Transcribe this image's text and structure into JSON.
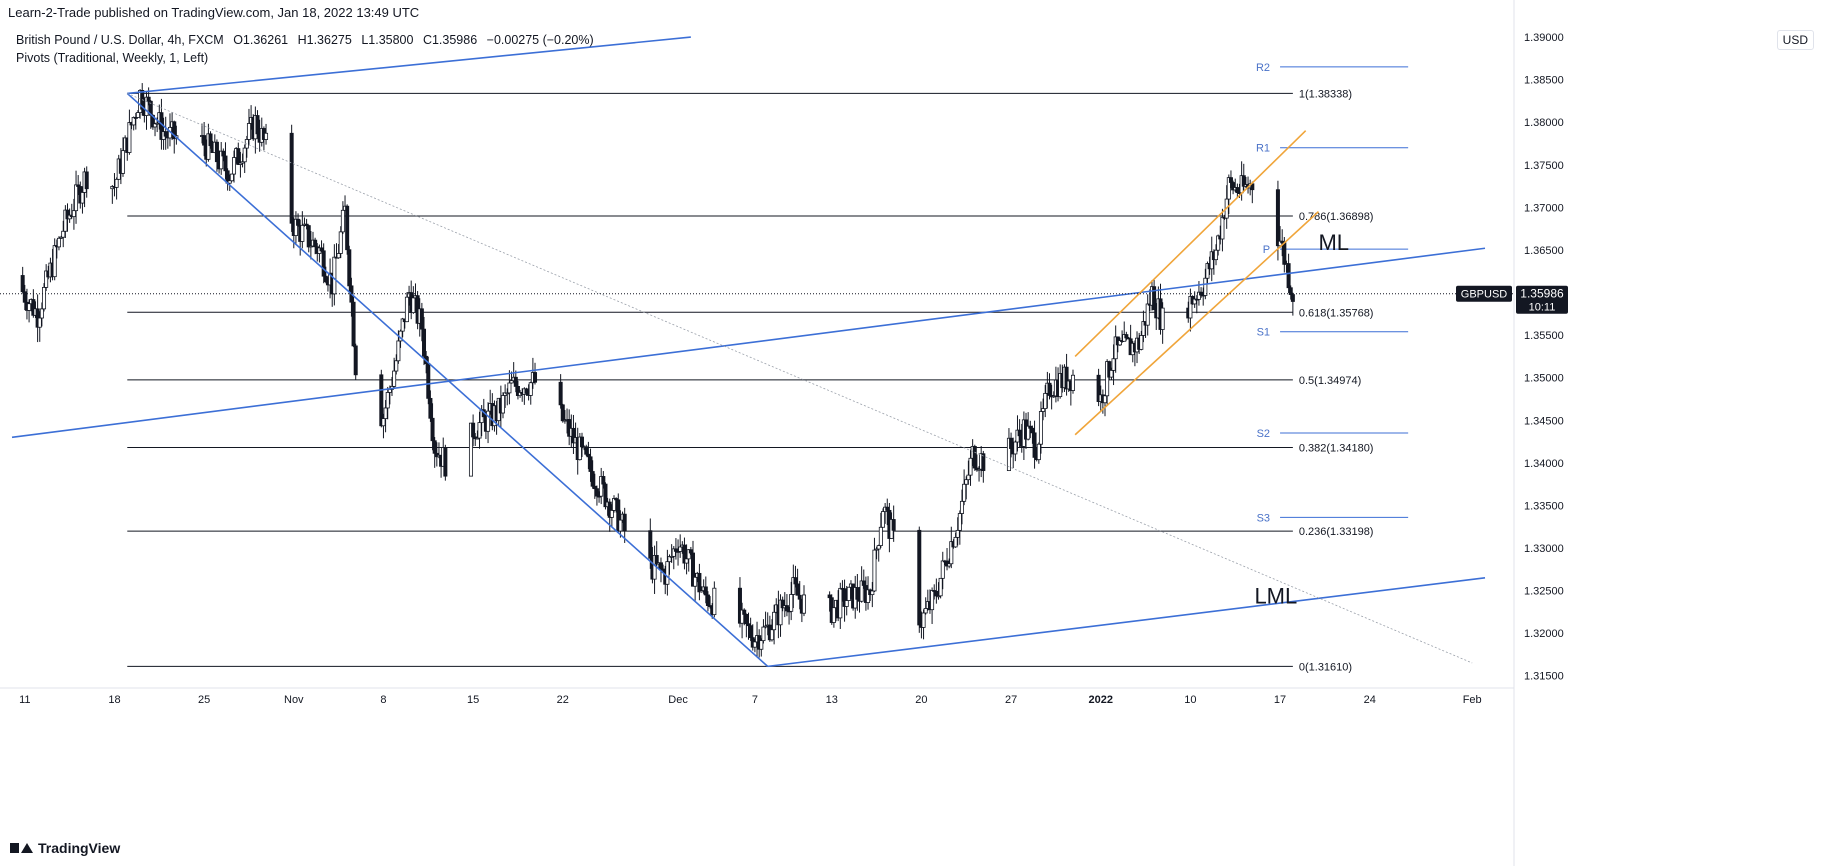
{
  "header": {
    "published": "Learn-2-Trade published on TradingView.com, Jan 18, 2022 13:49 UTC",
    "symbol_desc": "British Pound / U.S. Dollar, 4h, FXCM",
    "open": "O1.36261",
    "high": "H1.36275",
    "low": "L1.35800",
    "close": "C1.35986",
    "change": "−0.00275 (−0.20%)",
    "pivots": "Pivots (Traditional, Weekly, 1, Left)"
  },
  "currency_button": "USD",
  "brand": "TradingView",
  "price_tag": {
    "symbol": "GBPUSD",
    "price": "1.35986",
    "countdown": "10:11"
  },
  "colors": {
    "up_candle": "#ffffff",
    "down_candle": "#131722",
    "trend_line": "#3c6fd6",
    "channel": "#f0a53a",
    "fib_line": "#131722",
    "pivot_line": "#3c6fd6",
    "pivot_label": "#4a72c8"
  },
  "chart_data": {
    "type": "candlestick",
    "symbol": "GBPUSD",
    "timeframe": "4h",
    "ylim": [
      1.3145,
      1.392
    ],
    "y_ticks": [
      "1.39000",
      "1.38500",
      "1.38000",
      "1.37500",
      "1.37000",
      "1.36500",
      "1.36000",
      "1.35500",
      "1.35000",
      "1.34500",
      "1.34000",
      "1.33500",
      "1.33000",
      "1.32500",
      "1.32000",
      "1.31500"
    ],
    "x_ticks": [
      {
        "label": "11",
        "x": "2021-10-11"
      },
      {
        "label": "18",
        "x": "2021-10-18"
      },
      {
        "label": "25",
        "x": "2021-10-25"
      },
      {
        "label": "Nov",
        "x": "2021-11-01"
      },
      {
        "label": "8",
        "x": "2021-11-08"
      },
      {
        "label": "15",
        "x": "2021-11-15"
      },
      {
        "label": "22",
        "x": "2021-11-22"
      },
      {
        "label": "Dec",
        "x": "2021-12-01"
      },
      {
        "label": "7",
        "x": "2021-12-07"
      },
      {
        "label": "13",
        "x": "2021-12-13"
      },
      {
        "label": "20",
        "x": "2021-12-20"
      },
      {
        "label": "27",
        "x": "2021-12-27"
      },
      {
        "label": "2022",
        "x": "2022-01-03"
      },
      {
        "label": "10",
        "x": "2022-01-10"
      },
      {
        "label": "17",
        "x": "2022-01-17"
      },
      {
        "label": "24",
        "x": "2022-01-24"
      },
      {
        "label": "Feb",
        "x": "2022-02-01"
      }
    ],
    "price_path": [
      [
        "2021-10-10",
        1.362
      ],
      [
        "2021-10-12",
        1.3575
      ],
      [
        "2021-10-14",
        1.3675
      ],
      [
        "2021-10-16",
        1.3745
      ],
      [
        "2021-10-18",
        1.3725
      ],
      [
        "2021-10-20",
        1.3833
      ],
      [
        "2021-10-22",
        1.3785
      ],
      [
        "2021-10-25",
        1.3775
      ],
      [
        "2021-10-27",
        1.374
      ],
      [
        "2021-10-29",
        1.38
      ],
      [
        "2021-10-30",
        1.3765
      ],
      [
        "2021-11-01",
        1.368
      ],
      [
        "2021-11-03",
        1.365
      ],
      [
        "2021-11-04",
        1.361
      ],
      [
        "2021-11-05",
        1.3695
      ],
      [
        "2021-11-06",
        1.348
      ],
      [
        "2021-11-08",
        1.3455
      ],
      [
        "2021-11-09",
        1.352
      ],
      [
        "2021-11-10",
        1.36
      ],
      [
        "2021-11-11",
        1.356
      ],
      [
        "2021-11-12",
        1.342
      ],
      [
        "2021-11-14",
        1.3375
      ],
      [
        "2021-11-15",
        1.344
      ],
      [
        "2021-11-17",
        1.346
      ],
      [
        "2021-11-18",
        1.349
      ],
      [
        "2021-11-20",
        1.3495
      ],
      [
        "2021-11-22",
        1.345
      ],
      [
        "2021-11-24",
        1.3395
      ],
      [
        "2021-11-26",
        1.3345
      ],
      [
        "2021-11-28",
        1.3285
      ],
      [
        "2021-11-30",
        1.327
      ],
      [
        "2021-12-01",
        1.331
      ],
      [
        "2021-12-03",
        1.3245
      ],
      [
        "2021-12-05",
        1.3225
      ],
      [
        "2021-12-07",
        1.3195
      ],
      [
        "2021-12-08",
        1.3205
      ],
      [
        "2021-12-10",
        1.325
      ],
      [
        "2021-12-12",
        1.3215
      ],
      [
        "2021-12-14",
        1.324
      ],
      [
        "2021-12-16",
        1.325
      ],
      [
        "2021-12-17",
        1.335
      ],
      [
        "2021-12-18",
        1.33
      ],
      [
        "2021-12-20",
        1.3215
      ],
      [
        "2021-12-21",
        1.324
      ],
      [
        "2021-12-23",
        1.334
      ],
      [
        "2021-12-24",
        1.341
      ],
      [
        "2021-12-26",
        1.3395
      ],
      [
        "2021-12-28",
        1.344
      ],
      [
        "2021-12-29",
        1.342
      ],
      [
        "2021-12-30",
        1.349
      ],
      [
        "2022-01-02",
        1.351
      ],
      [
        "2022-01-03",
        1.3475
      ],
      [
        "2022-01-04",
        1.353
      ],
      [
        "2022-01-06",
        1.354
      ],
      [
        "2022-01-07",
        1.36
      ],
      [
        "2022-01-08",
        1.356
      ],
      [
        "2022-01-10",
        1.359
      ],
      [
        "2022-01-11",
        1.361
      ],
      [
        "2022-01-12",
        1.365
      ],
      [
        "2022-01-13",
        1.3725
      ],
      [
        "2022-01-14",
        1.372
      ],
      [
        "2022-01-15",
        1.373
      ],
      [
        "2022-01-16",
        1.37
      ],
      [
        "2022-01-17",
        1.3662
      ],
      [
        "2022-01-18",
        1.3599
      ]
    ],
    "last_price": 1.35986,
    "fibonacci": [
      {
        "level": "1",
        "value": 1.38338,
        "label": "1(1.38338)"
      },
      {
        "level": "0.786",
        "value": 1.36898,
        "label": "0.786(1.36898)"
      },
      {
        "level": "0.618",
        "value": 1.35768,
        "label": "0.618(1.35768)"
      },
      {
        "level": "0.5",
        "value": 1.34974,
        "label": "0.5(1.34974)"
      },
      {
        "level": "0.382",
        "value": 1.3418,
        "label": "0.382(1.34180)"
      },
      {
        "level": "0.236",
        "value": 1.33198,
        "label": "0.236(1.33198)"
      },
      {
        "level": "0",
        "value": 1.3161,
        "label": "0(1.31610)"
      }
    ],
    "pivots": [
      {
        "label": "R2",
        "value": 1.3865
      },
      {
        "label": "R1",
        "value": 1.377
      },
      {
        "label": "P",
        "value": 1.3651
      },
      {
        "label": "S1",
        "value": 1.3554
      },
      {
        "label": "S2",
        "value": 1.3435
      },
      {
        "label": "S3",
        "value": 1.3336
      }
    ],
    "annotations": [
      {
        "text": "ML",
        "x": "2022-01-20",
        "y": 1.365
      },
      {
        "text": "LML",
        "x": "2022-01-15",
        "y": 1.3235
      }
    ]
  }
}
